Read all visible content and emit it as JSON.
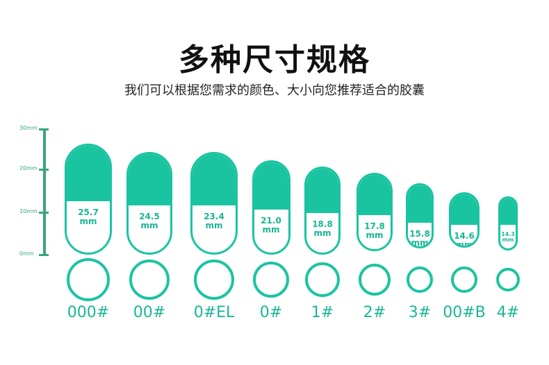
{
  "title": "多种尺寸规格",
  "subtitle": "我们可以根据您需求的颜色、大小向您推荐适合的胶囊",
  "scale": {
    "ticks": [
      "30mm",
      "20mm",
      "10mm",
      "0mm"
    ]
  },
  "colors": {
    "accent": "#1ac4a0",
    "scale": "#3aa57a"
  },
  "capsules": [
    {
      "name": "000#",
      "length_mm": "25.7",
      "unit": "mm"
    },
    {
      "name": "00#",
      "length_mm": "24.5",
      "unit": "mm"
    },
    {
      "name": "0#EL",
      "length_mm": "23.4",
      "unit": "mm"
    },
    {
      "name": "0#",
      "length_mm": "21.0",
      "unit": "mm"
    },
    {
      "name": "1#",
      "length_mm": "18.8",
      "unit": "mm"
    },
    {
      "name": "2#",
      "length_mm": "17.8",
      "unit": "mm"
    },
    {
      "name": "3#",
      "length_mm": "15.8",
      "unit": "mm"
    },
    {
      "name": "00#B",
      "length_mm": "14.6",
      "unit": "mm"
    },
    {
      "name": "4#",
      "length_mm": "14.3",
      "unit": "mm"
    }
  ]
}
